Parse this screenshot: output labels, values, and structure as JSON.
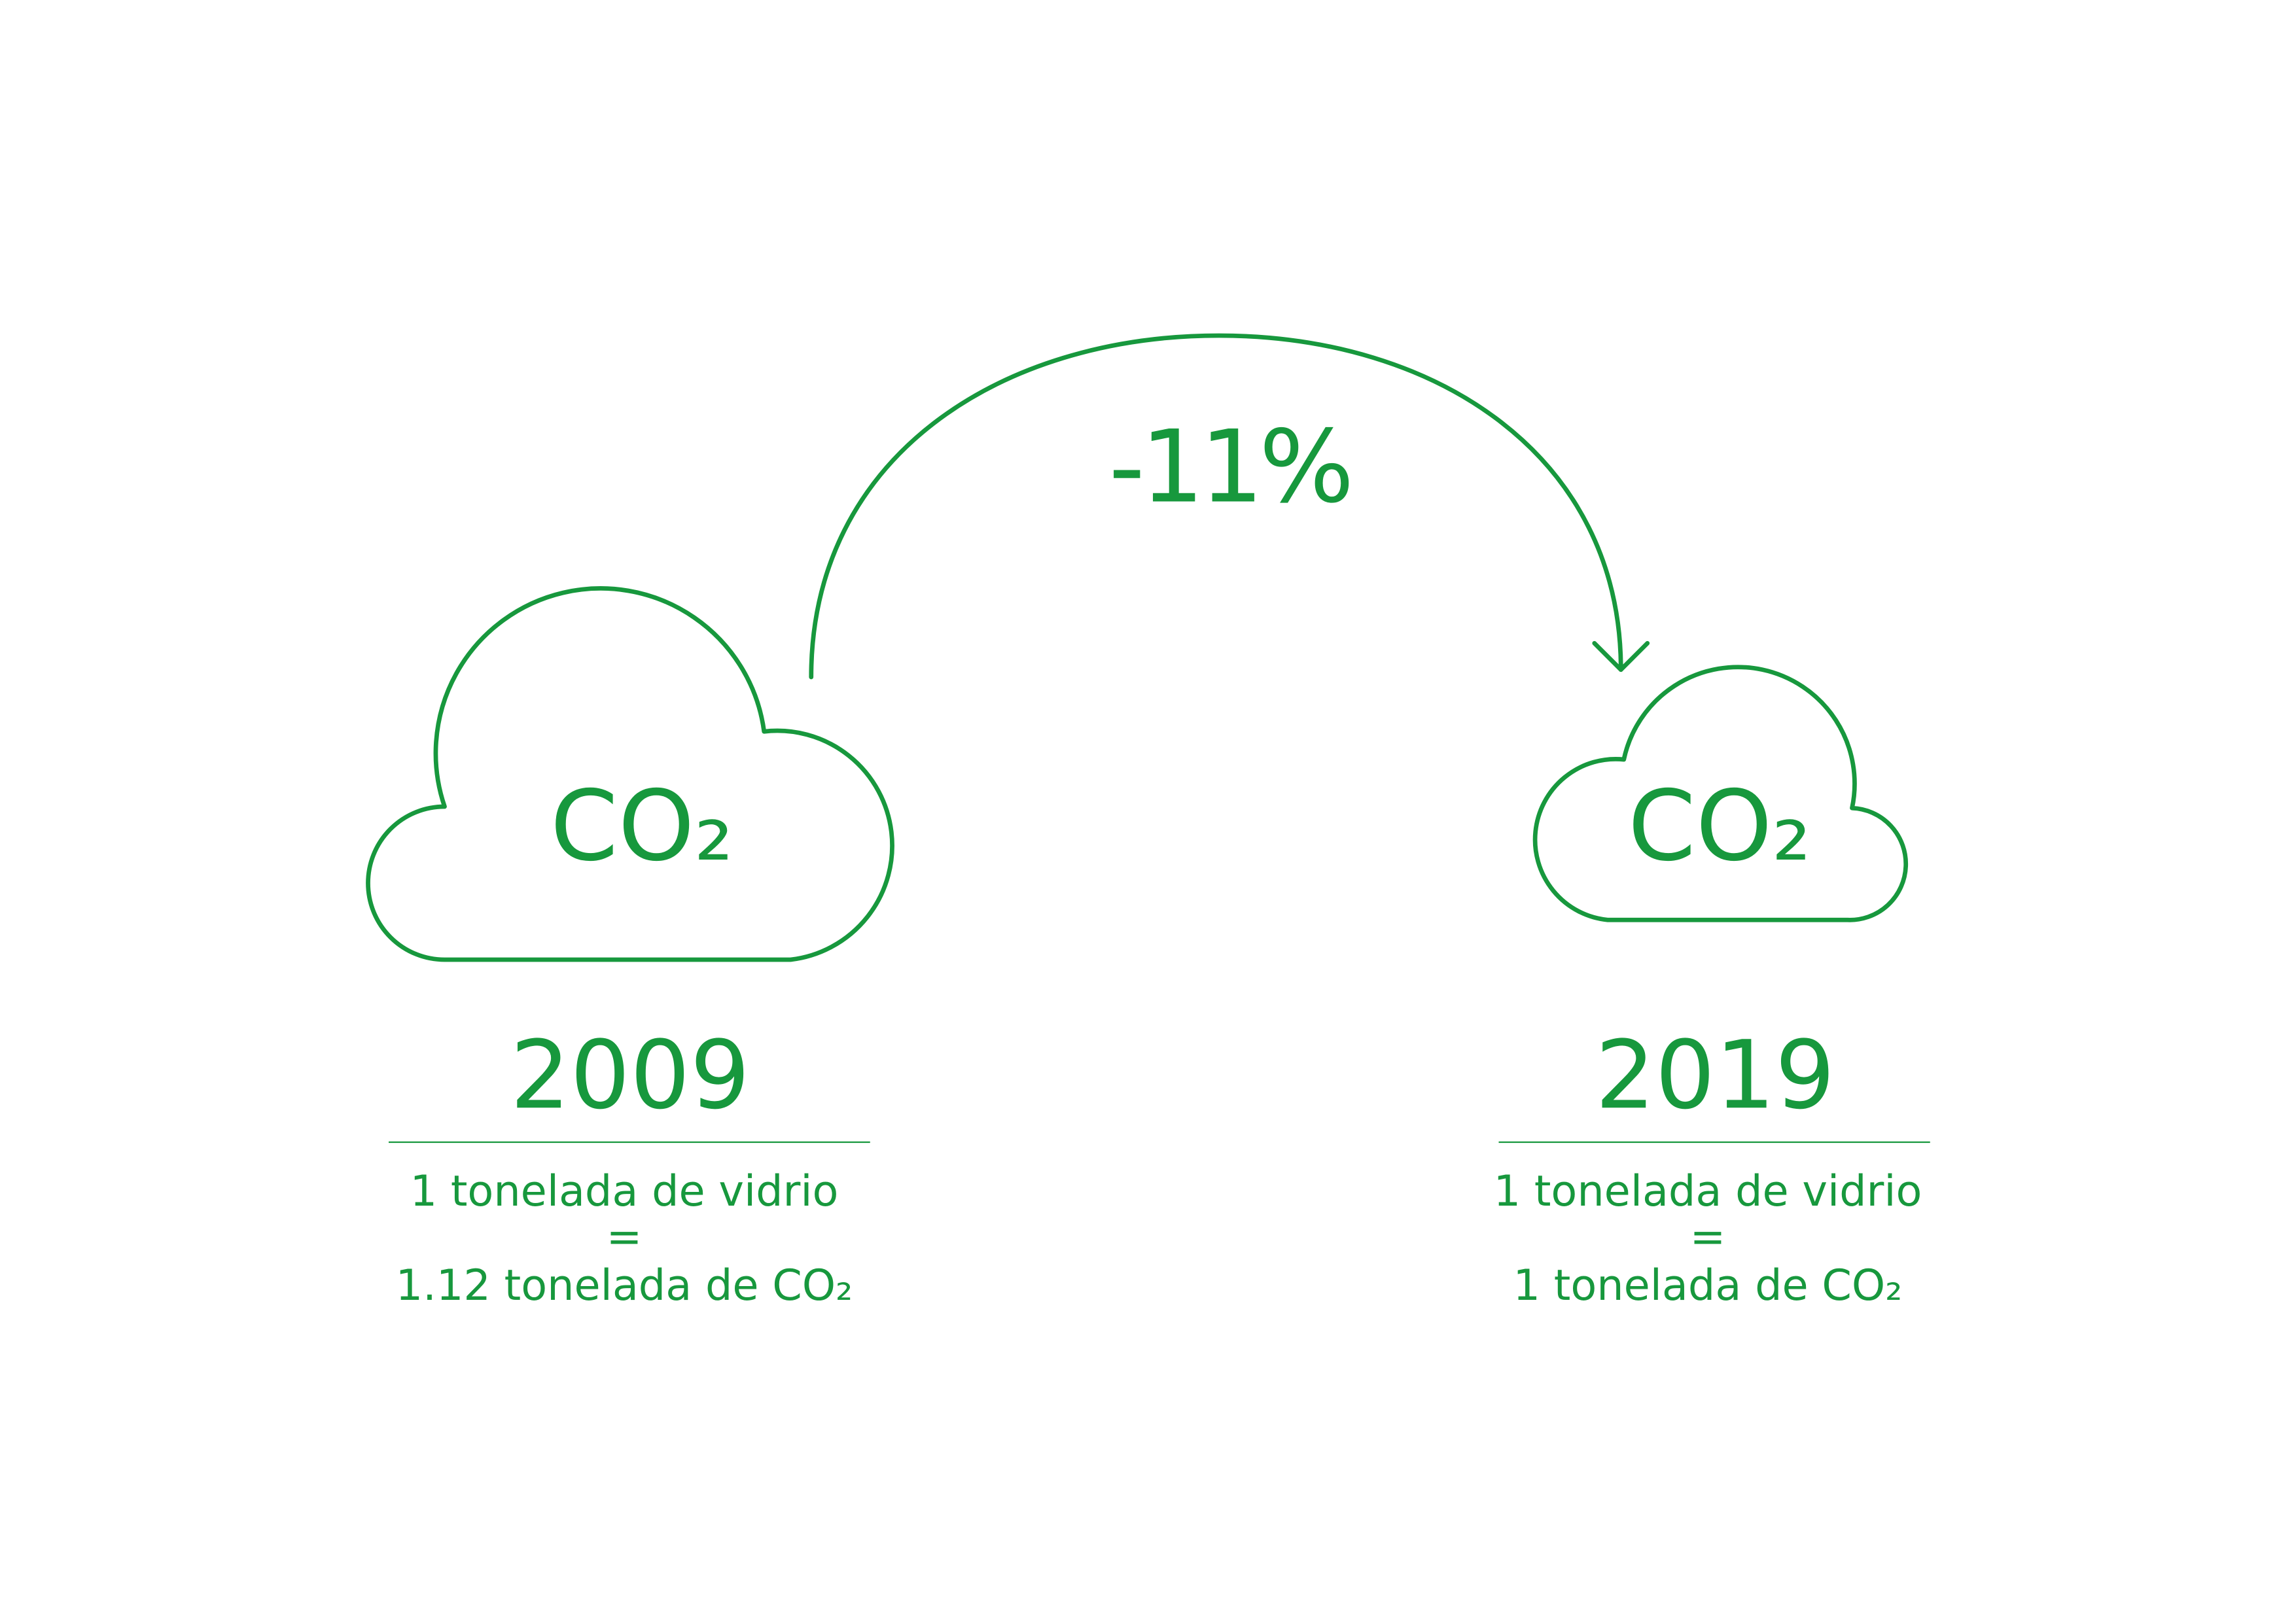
{
  "change": "-11%",
  "before": {
    "cloud_label": "CO₂",
    "year": "2009",
    "lines": [
      "1 tonelada de vidrio",
      "=",
      "1.12 tonelada de CO₂"
    ]
  },
  "after": {
    "cloud_label": "CO₂",
    "year": "2019",
    "lines": [
      "1 tonelada de vidrio",
      "=",
      "1 tonelada de CO₂"
    ]
  }
}
